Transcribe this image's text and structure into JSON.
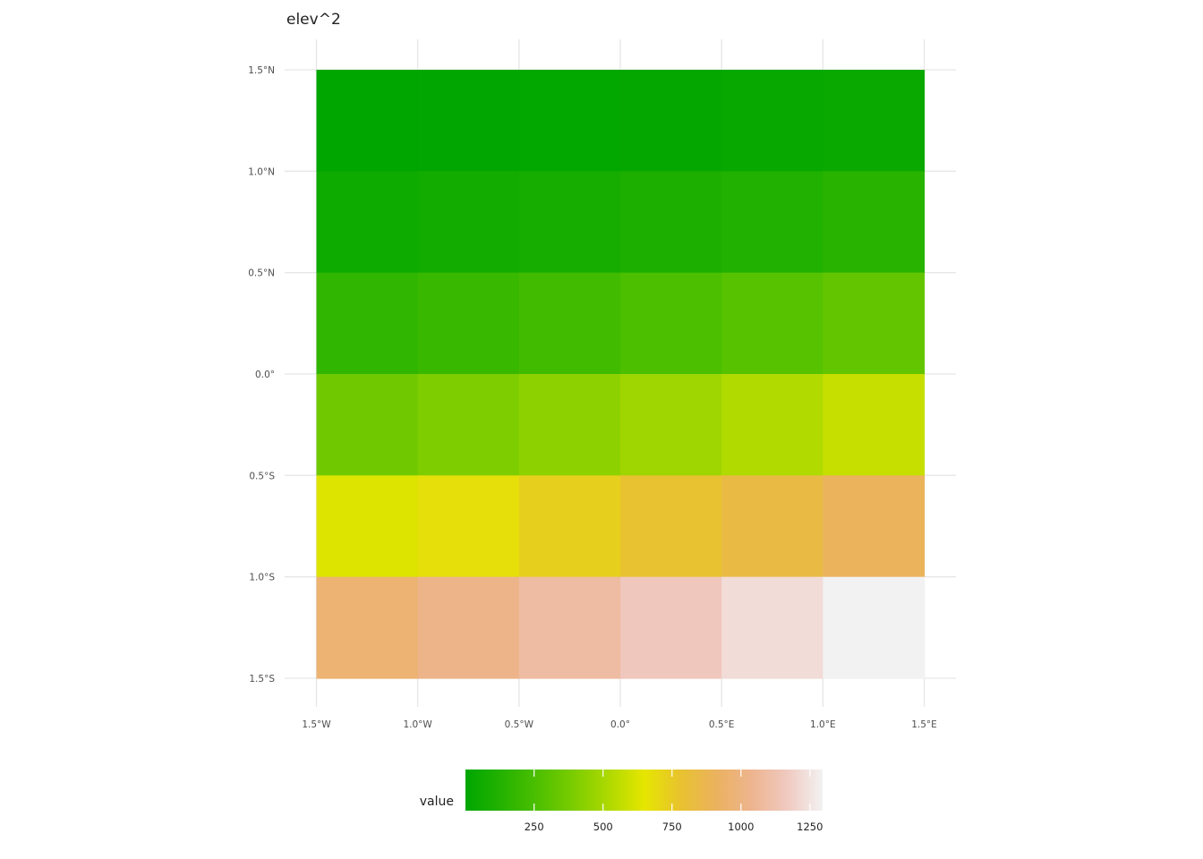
{
  "chart_data": {
    "type": "heatmap",
    "title": "elev^2",
    "x_ticks": [
      "1.5°W",
      "1.0°W",
      "0.5°W",
      "0.0°",
      "0.5°E",
      "1.0°E",
      "1.5°E"
    ],
    "y_ticks": [
      "1.5°N",
      "1.0°N",
      "0.5°N",
      "0.0°",
      "0.5°S",
      "1.0°S",
      "1.5°S"
    ],
    "x_values": [
      -1.5,
      -1.0,
      -0.5,
      0.0,
      0.5,
      1.0,
      1.5
    ],
    "y_values": [
      1.5,
      1.0,
      0.5,
      0.0,
      -0.5,
      -1.0,
      -1.5
    ],
    "cell_x_centers": [
      -1.25,
      -0.75,
      -0.25,
      0.25,
      0.75,
      1.25
    ],
    "cell_y_centers": [
      1.25,
      0.75,
      0.25,
      -0.25,
      -0.75,
      -1.25
    ],
    "values": [
      [
        1,
        4,
        9,
        16,
        25,
        36
      ],
      [
        49,
        64,
        81,
        100,
        121,
        144
      ],
      [
        169,
        196,
        225,
        256,
        289,
        324
      ],
      [
        361,
        400,
        441,
        484,
        529,
        576
      ],
      [
        625,
        676,
        729,
        784,
        841,
        900
      ],
      [
        961,
        1024,
        1089,
        1156,
        1225,
        1296
      ]
    ],
    "legend": {
      "title": "value",
      "ticks": [
        250,
        500,
        750,
        1000,
        1250
      ],
      "tick_labels": [
        "250",
        "500",
        "750",
        "1000",
        "1250"
      ],
      "range": [
        1,
        1296
      ],
      "position": "bottom"
    },
    "colormap": [
      "#00A600",
      "#24B200",
      "#4CBF00",
      "#7ACC00",
      "#ADD900",
      "#E6E600",
      "#E8C32E",
      "#EBB25E",
      "#EDB48E",
      "#F0C9C0",
      "#F2F2F2"
    ]
  }
}
